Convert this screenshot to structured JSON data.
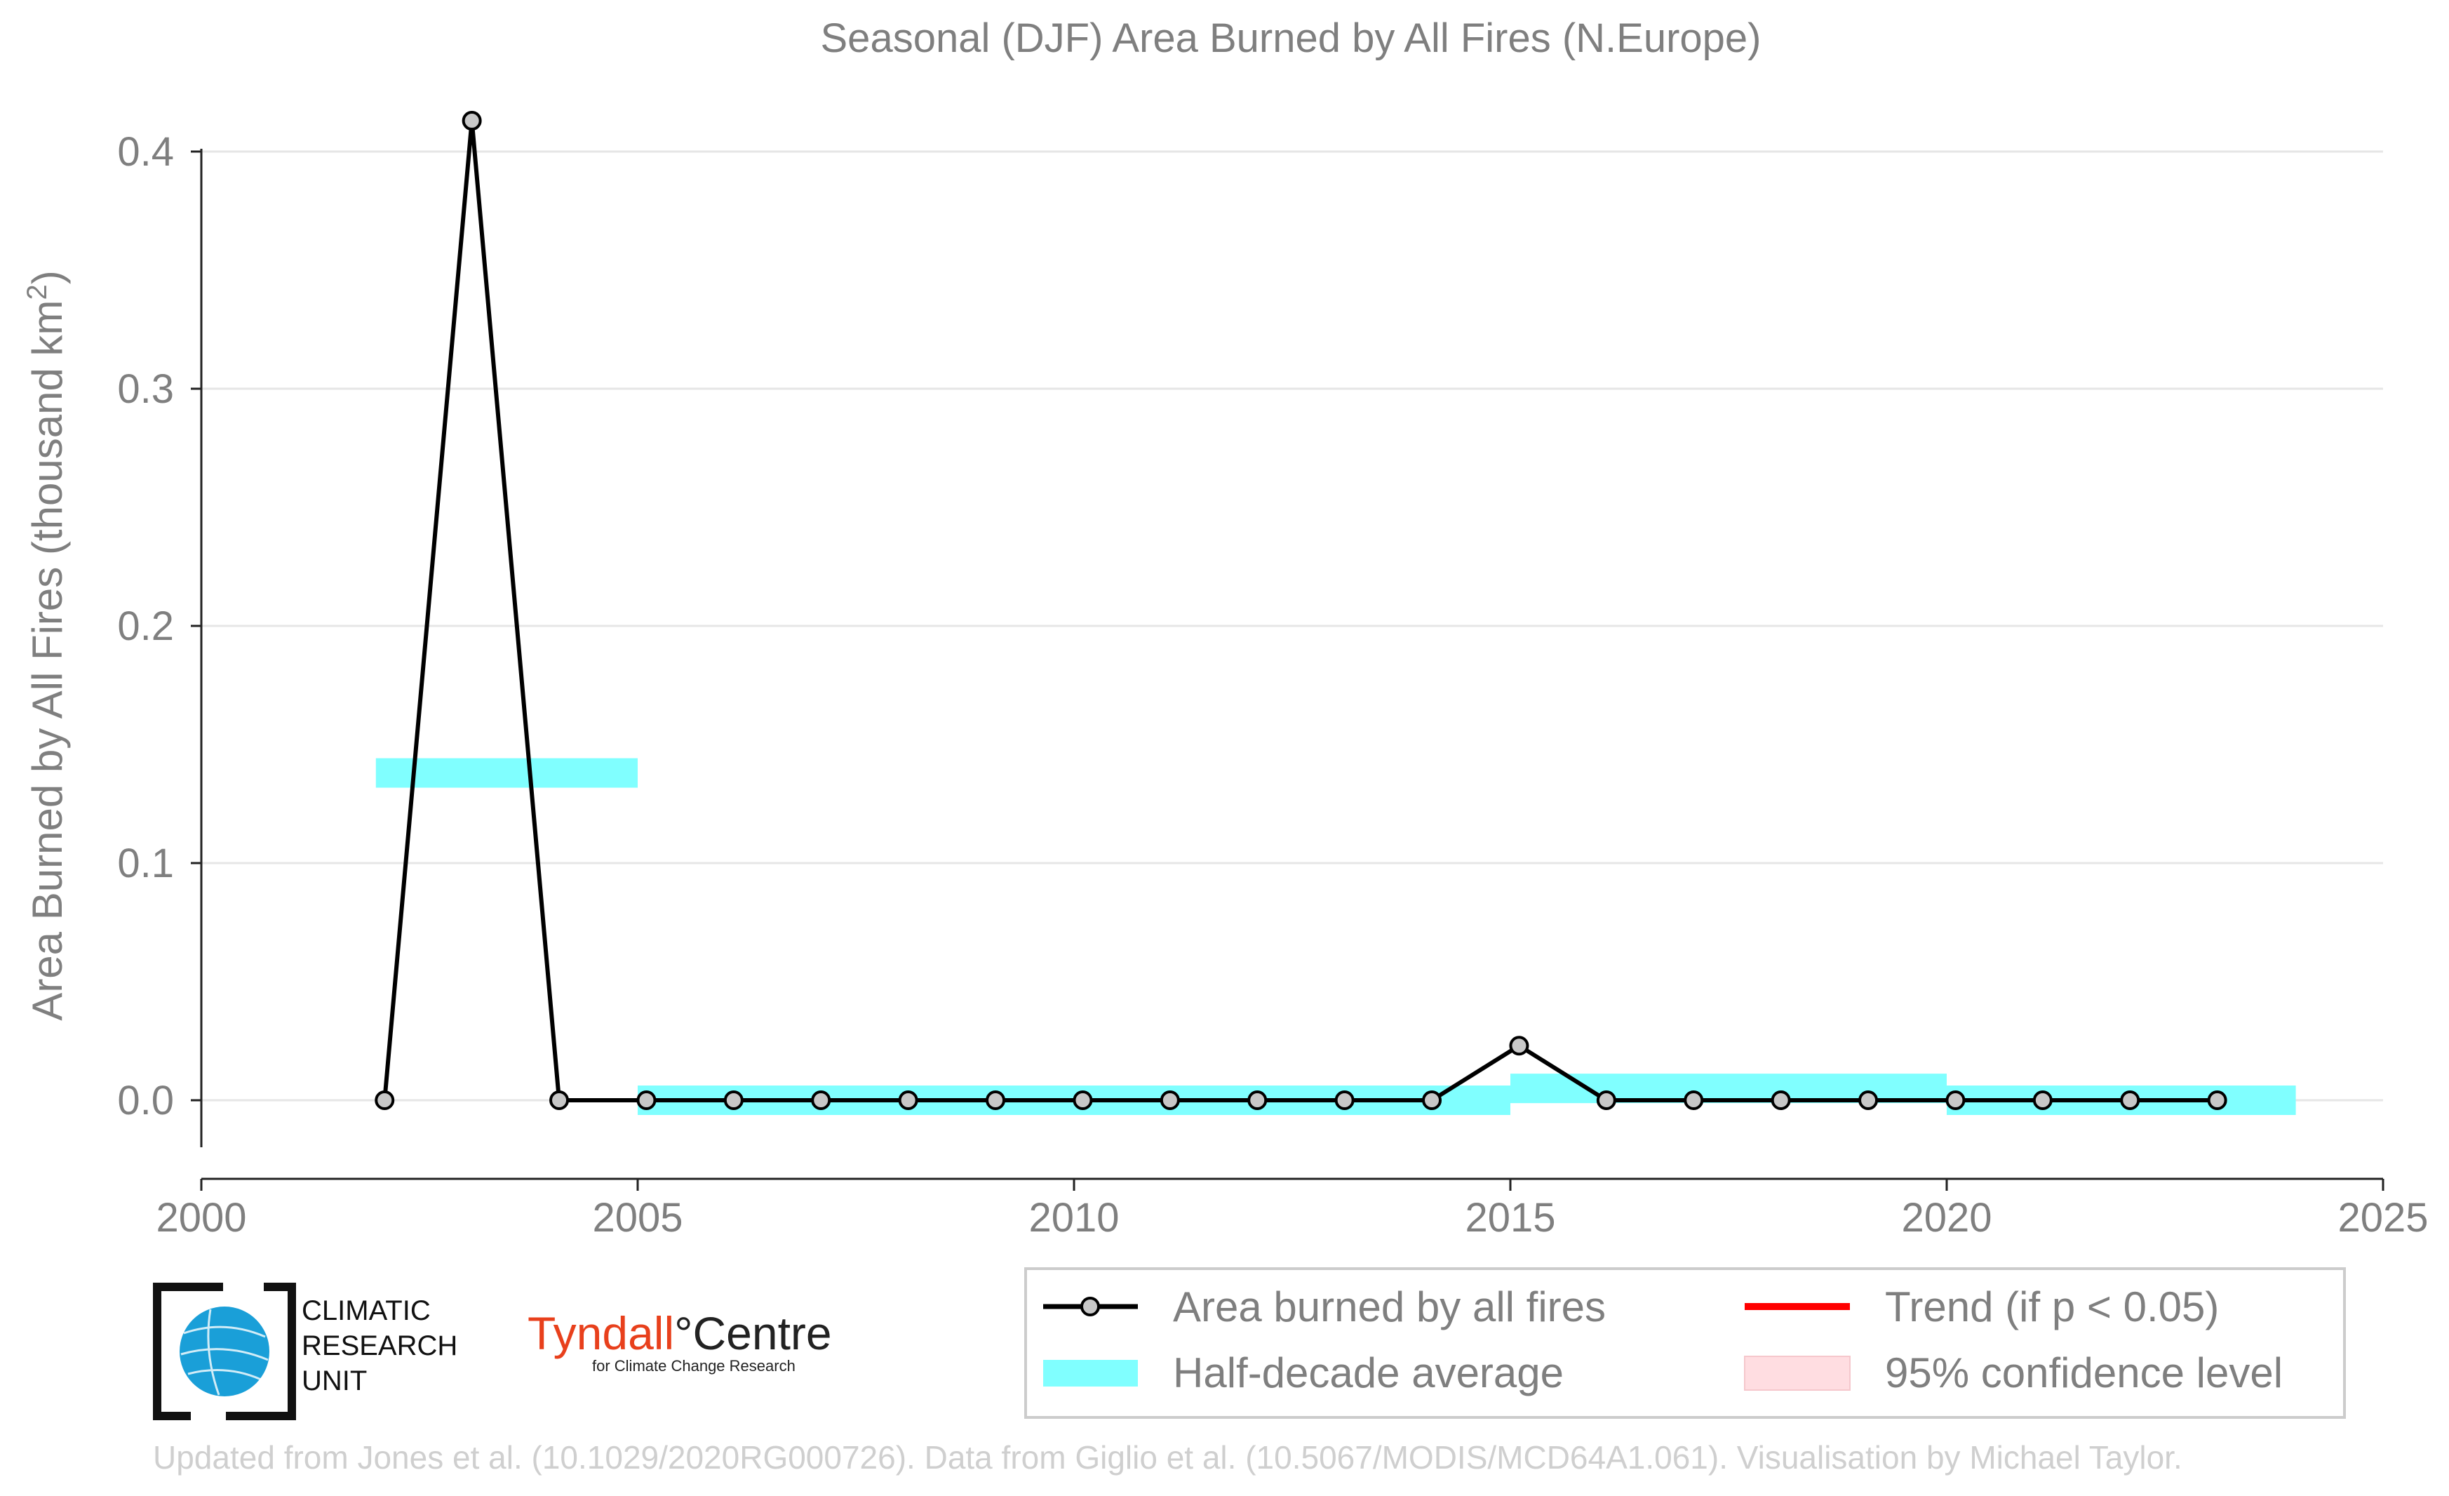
{
  "chart_data": {
    "type": "line",
    "title": "Seasonal (DJF) Area Burned by All Fires (N.Europe)",
    "xlabel": "",
    "ylabel": "Area Burned by All Fires (thousand km",
    "ylabel_sup": "2",
    "ylabel_end": ")",
    "xlim": [
      2000,
      2025
    ],
    "ylim": [
      -0.033,
      0.42
    ],
    "x_ticks": [
      2000,
      2005,
      2010,
      2015,
      2020,
      2025
    ],
    "x_tick_labels": [
      "2000",
      "2005",
      "2010",
      "2015",
      "2020",
      "2025"
    ],
    "y_ticks": [
      0.0,
      0.1,
      0.2,
      0.3,
      0.4
    ],
    "y_tick_labels": [
      "0.0",
      "0.1",
      "0.2",
      "0.3",
      "0.4"
    ],
    "grid": "horizontal",
    "legend_position": "bottom-right",
    "series": [
      {
        "name": "Area burned by all fires",
        "color": "#000000",
        "marker_fill": "#c8c8c8",
        "x": [
          2002.1,
          2003.1,
          2004.1,
          2005.1,
          2006.1,
          2007.1,
          2008.1,
          2009.1,
          2010.1,
          2011.1,
          2012.1,
          2013.1,
          2014.1,
          2015.1,
          2016.1,
          2017.1,
          2018.1,
          2019.1,
          2020.1,
          2021.1,
          2022.1,
          2023.1
        ],
        "y": [
          0.0,
          0.413,
          0.0,
          0.0,
          0.0,
          0.0,
          0.0,
          0.0,
          0.0,
          0.0,
          0.0,
          0.0,
          0.0,
          0.023,
          0.0,
          0.0,
          0.0,
          0.0,
          0.0,
          0.0,
          0.0,
          0.0
        ]
      }
    ],
    "half_decade_average": {
      "name": "Half-decade average",
      "color": "#80ffff",
      "segments": [
        {
          "x_start": 2002,
          "x_end": 2005,
          "y": 0.138
        },
        {
          "x_start": 2005,
          "x_end": 2015,
          "y": 0.0
        },
        {
          "x_start": 2015,
          "x_end": 2020,
          "y": 0.005
        },
        {
          "x_start": 2020,
          "x_end": 2024,
          "y": 0.0
        }
      ]
    },
    "legend": [
      {
        "label": "Area burned by all fires",
        "kind": "line-marker",
        "color": "#000000"
      },
      {
        "label": "Trend (if p < 0.05)",
        "kind": "line",
        "color": "#ff0000"
      },
      {
        "label": "Half-decade average",
        "kind": "band",
        "color": "#80ffff"
      },
      {
        "label": "95% confidence level",
        "kind": "band",
        "color": "#ffdde1"
      }
    ]
  },
  "logos": {
    "cru_lines": [
      "CLIMATIC",
      "RESEARCH",
      "UNIT"
    ],
    "tyndall_part1": "Tyndall",
    "tyndall_part2": "°Centre",
    "tyndall_sub": "for Climate Change Research"
  },
  "footer": "Updated from Jones et al. (10.1029/2020RG000726). Data from Giglio et al. (10.5067/MODIS/MCD64A1.061). Visualisation by Michael Taylor."
}
